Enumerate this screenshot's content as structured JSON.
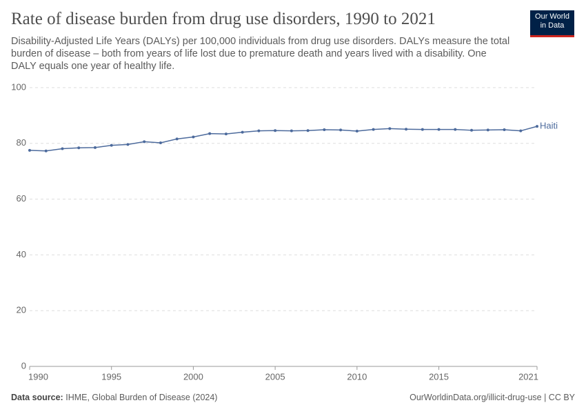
{
  "chart_data": {
    "type": "line",
    "title": "Rate of disease burden from drug use disorders, 1990 to 2021",
    "subtitle": "Disability-Adjusted Life Years (DALYs) per 100,000 individuals from drug use disorders. DALYs measure the total burden of disease – both from years of life lost due to premature death and years lived with a disability. One DALY equals one year of healthy life.",
    "logo": [
      "Our World",
      "in Data"
    ],
    "source_label": "Data source:",
    "source": "IHME, Global Burden of Disease (2024)",
    "footer_right": "OurWorldinData.org/illicit-drug-use | CC BY",
    "x": [
      1990,
      1991,
      1992,
      1993,
      1994,
      1995,
      1996,
      1997,
      1998,
      1999,
      2000,
      2001,
      2002,
      2003,
      2004,
      2005,
      2006,
      2007,
      2008,
      2009,
      2010,
      2011,
      2012,
      2013,
      2014,
      2015,
      2016,
      2017,
      2018,
      2019,
      2020,
      2021
    ],
    "series": [
      {
        "name": "Haiti",
        "color": "#4c6a9c",
        "values": [
          77.5,
          77.3,
          78.1,
          78.4,
          78.5,
          79.3,
          79.6,
          80.6,
          80.2,
          81.6,
          82.3,
          83.5,
          83.4,
          84.0,
          84.5,
          84.6,
          84.5,
          84.6,
          84.9,
          84.8,
          84.4,
          85.0,
          85.3,
          85.1,
          85.0,
          85.0,
          85.0,
          84.7,
          84.8,
          84.9,
          84.5,
          86.1
        ]
      }
    ],
    "xlim": [
      1990,
      2021
    ],
    "xticks": [
      1990,
      1995,
      2000,
      2005,
      2010,
      2015,
      2021
    ],
    "ylim": [
      0,
      100
    ],
    "yticks": [
      0,
      20,
      40,
      60,
      80,
      100
    ],
    "grid": true
  }
}
